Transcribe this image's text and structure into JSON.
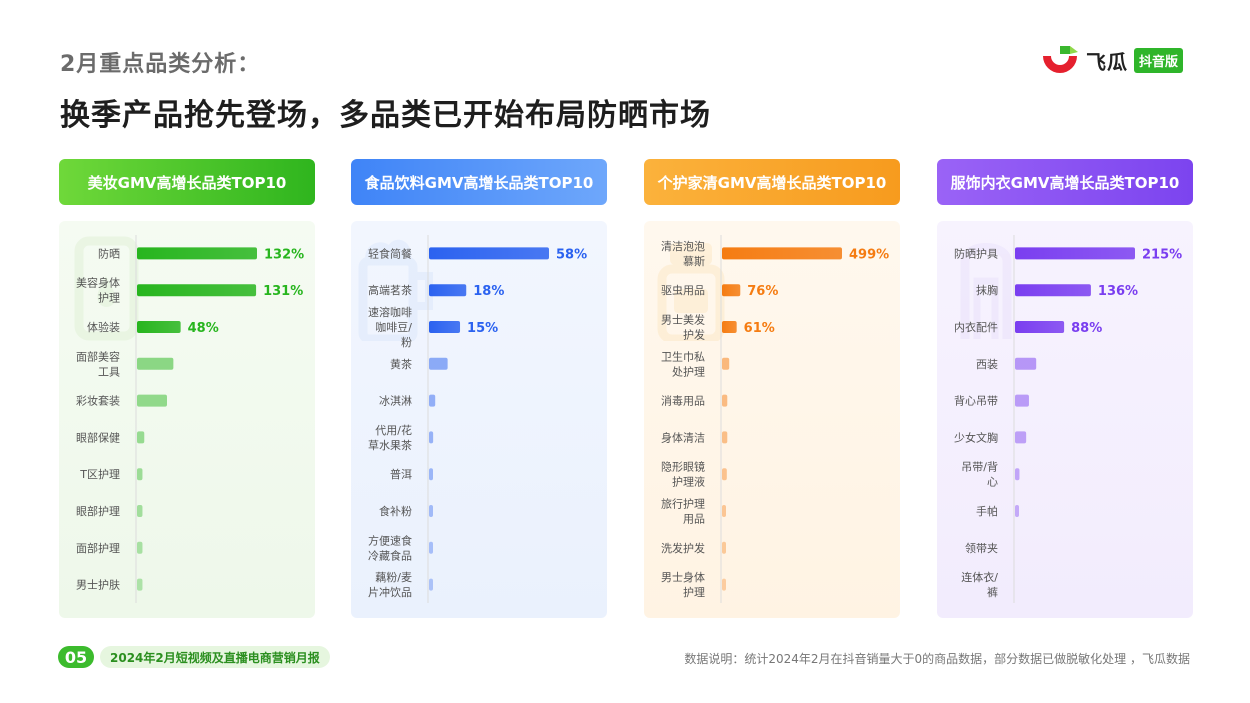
{
  "header": {
    "subtitle": "2月重点品类分析：",
    "headline": "换季产品抢先登场，多品类已开始布局防晒市场"
  },
  "logo": {
    "text": "飞瓜",
    "badge": "抖音版"
  },
  "colors": {
    "beauty": "#27b51e",
    "food": "#2b62f0",
    "personal": "#f57c12",
    "apparel": "#7a3ef0"
  },
  "chart_data": [
    {
      "type": "bar",
      "title": "美妆GMV高增长品类TOP10",
      "categories": [
        "防晒",
        "美容身体护理",
        "体验装",
        "面部美容工具",
        "彩妆套装",
        "眼部保健",
        "T区护理",
        "眼部护理",
        "面部护理",
        "男士护肤"
      ],
      "values": [
        132,
        131,
        48,
        40,
        33,
        8,
        6,
        6,
        6,
        6
      ],
      "data_labels": [
        "132%",
        "131%",
        "48%",
        "",
        "",
        "",
        "",
        "",
        "",
        ""
      ]
    },
    {
      "type": "bar",
      "title": "食品饮料GMV高增长品类TOP10",
      "categories": [
        "轻食简餐",
        "高端茗茶",
        "速溶咖啡咖啡豆/粉",
        "黄茶",
        "冰淇淋",
        "代用/花草水果茶",
        "普洱",
        "食补粉",
        "方便速食冷藏食品",
        "藕粉/麦片冲饮品"
      ],
      "values": [
        58,
        18,
        15,
        9,
        3,
        2,
        1.5,
        1.5,
        1.5,
        1
      ],
      "data_labels": [
        "58%",
        "18%",
        "15%",
        "",
        "",
        "",
        "",
        "",
        "",
        ""
      ]
    },
    {
      "type": "bar",
      "title": "个护家清GMV高增长品类TOP10",
      "categories": [
        "清洁泡泡慕斯",
        "驱虫用品",
        "男士美发护发",
        "卫生巾私处护理",
        "消毒用品",
        "身体清洁",
        "隐形眼镜护理液",
        "旅行护理用品",
        "洗发护发",
        "男士身体护理"
      ],
      "values": [
        499,
        76,
        61,
        30,
        22,
        22,
        20,
        12,
        12,
        12
      ],
      "data_labels": [
        "499%",
        "76%",
        "61%",
        "",
        "",
        "",
        "",
        "",
        "",
        ""
      ]
    },
    {
      "type": "bar",
      "title": "服饰内衣GMV高增长品类TOP10",
      "categories": [
        "防晒护具",
        "抹胸",
        "内衣配件",
        "西装",
        "背心吊带",
        "少女文胸",
        "吊带/背心",
        "手帕",
        "领带夹",
        "连体衣/裤"
      ],
      "values": [
        215,
        136,
        88,
        38,
        25,
        20,
        8,
        7,
        0,
        0
      ],
      "data_labels": [
        "215%",
        "136%",
        "88%",
        "",
        "",
        "",
        "",
        "",
        "",
        ""
      ]
    }
  ],
  "footer": {
    "page_number": "05",
    "report_name": "2024年2月短视频及直播电商营销月报",
    "data_note": "数据说明：统计2024年2月在抖音销量大于0的商品数据，部分数据已做脱敏化处理 ，飞瓜数据"
  }
}
